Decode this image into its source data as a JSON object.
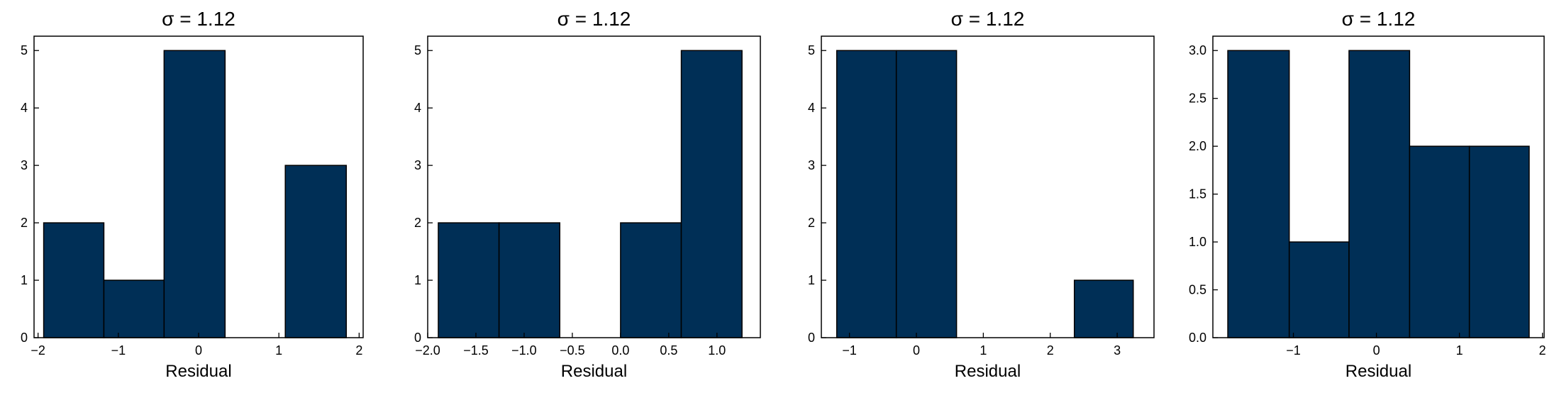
{
  "chart_data": [
    {
      "type": "bar",
      "title": "σ = 1.12",
      "xlabel": "Residual",
      "ylabel": "",
      "xlim": [
        -2.05,
        2.05
      ],
      "ylim": [
        0,
        5.25
      ],
      "grid": false,
      "bar_color": "#002f56",
      "edge_color": "#000000",
      "bins": [
        {
          "x0": -1.93,
          "x1": -1.18,
          "count": 2
        },
        {
          "x0": -1.18,
          "x1": -0.43,
          "count": 1
        },
        {
          "x0": -0.43,
          "x1": 0.33,
          "count": 5
        },
        {
          "x0": 0.33,
          "x1": 1.08,
          "count": 0
        },
        {
          "x0": 1.08,
          "x1": 1.84,
          "count": 3
        }
      ],
      "xticks": [
        -2,
        -1,
        0,
        1,
        2
      ],
      "xtick_labels": [
        "−2",
        "−1",
        "0",
        "1",
        "2"
      ],
      "yticks": [
        0,
        1,
        2,
        3,
        4,
        5
      ],
      "ytick_labels": [
        "0",
        "1",
        "2",
        "3",
        "4",
        "5"
      ]
    },
    {
      "type": "bar",
      "title": "σ = 1.12",
      "xlabel": "Residual",
      "ylabel": "",
      "xlim": [
        -2.0,
        1.45
      ],
      "ylim": [
        0,
        5.25
      ],
      "grid": false,
      "bar_color": "#002f56",
      "edge_color": "#000000",
      "bins": [
        {
          "x0": -1.89,
          "x1": -1.26,
          "count": 2
        },
        {
          "x0": -1.26,
          "x1": -0.63,
          "count": 2
        },
        {
          "x0": -0.63,
          "x1": 0.0,
          "count": 0
        },
        {
          "x0": 0.0,
          "x1": 0.63,
          "count": 2
        },
        {
          "x0": 0.63,
          "x1": 1.26,
          "count": 5
        }
      ],
      "xticks": [
        -2.0,
        -1.5,
        -1.0,
        -0.5,
        0.0,
        0.5,
        1.0
      ],
      "xtick_labels": [
        "−2.0",
        "−1.5",
        "−1.0",
        "−0.5",
        "0.0",
        "0.5",
        "1.0"
      ],
      "yticks": [
        0,
        1,
        2,
        3,
        4,
        5
      ],
      "ytick_labels": [
        "0",
        "1",
        "2",
        "3",
        "4",
        "5"
      ]
    },
    {
      "type": "bar",
      "title": "σ = 1.12",
      "xlabel": "Residual",
      "ylabel": "",
      "xlim": [
        -1.42,
        3.55
      ],
      "ylim": [
        0,
        5.25
      ],
      "grid": false,
      "bar_color": "#002f56",
      "edge_color": "#000000",
      "bins": [
        {
          "x0": -1.19,
          "x1": -0.3,
          "count": 5
        },
        {
          "x0": -0.3,
          "x1": 0.6,
          "count": 5
        },
        {
          "x0": 0.6,
          "x1": 1.47,
          "count": 0
        },
        {
          "x0": 1.47,
          "x1": 2.36,
          "count": 0
        },
        {
          "x0": 2.36,
          "x1": 3.24,
          "count": 1
        }
      ],
      "xticks": [
        -1,
        0,
        1,
        2,
        3
      ],
      "xtick_labels": [
        "−1",
        "0",
        "1",
        "2",
        "3"
      ],
      "yticks": [
        0,
        1,
        2,
        3,
        4,
        5
      ],
      "ytick_labels": [
        "0",
        "1",
        "2",
        "3",
        "4",
        "5"
      ]
    },
    {
      "type": "bar",
      "title": "σ = 1.12",
      "xlabel": "Residual",
      "ylabel": "",
      "xlim": [
        -1.97,
        2.02
      ],
      "ylim": [
        0,
        3.15
      ],
      "grid": false,
      "bar_color": "#002f56",
      "edge_color": "#000000",
      "bins": [
        {
          "x0": -1.79,
          "x1": -1.05,
          "count": 3
        },
        {
          "x0": -1.05,
          "x1": -0.33,
          "count": 1
        },
        {
          "x0": -0.33,
          "x1": 0.4,
          "count": 3
        },
        {
          "x0": 0.4,
          "x1": 1.12,
          "count": 2
        },
        {
          "x0": 1.12,
          "x1": 1.84,
          "count": 2
        }
      ],
      "xticks": [
        -1,
        0,
        1,
        2
      ],
      "xtick_labels": [
        "−1",
        "0",
        "1",
        "2"
      ],
      "yticks": [
        0.0,
        0.5,
        1.0,
        1.5,
        2.0,
        2.5,
        3.0
      ],
      "ytick_labels": [
        "0.0",
        "0.5",
        "1.0",
        "1.5",
        "2.0",
        "2.5",
        "3.0"
      ]
    }
  ]
}
